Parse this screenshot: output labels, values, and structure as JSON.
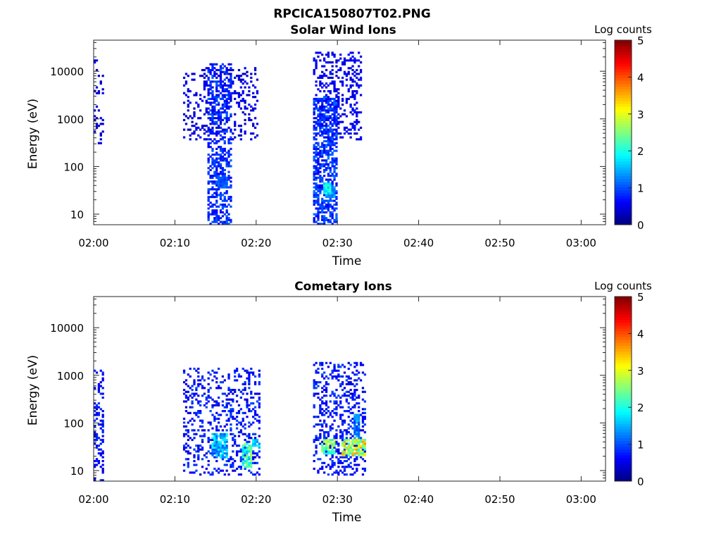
{
  "figure": {
    "title": "RPCICA150807T02.PNG"
  },
  "panels": [
    {
      "id": "sw",
      "title": "Solar Wind Ions",
      "xlabel": "Time",
      "ylabel": "Energy (eV)",
      "colorbar_title": "Log counts"
    },
    {
      "id": "cometary",
      "title": "Cometary Ions",
      "xlabel": "Time",
      "ylabel": "Energy (eV)",
      "colorbar_title": "Log counts"
    }
  ],
  "chart_data": [
    {
      "type": "heatmap",
      "title": "Solar Wind Ions",
      "xlabel": "Time",
      "ylabel": "Energy (eV)",
      "x_range_minutes_after_0200": [
        0,
        63
      ],
      "x_ticks": [
        "02:00",
        "02:10",
        "02:20",
        "02:30",
        "02:40",
        "02:50",
        "03:00"
      ],
      "y_scale": "log",
      "y_range_eV": [
        6,
        45000
      ],
      "y_ticks": [
        "10",
        "100",
        "1000",
        "10000"
      ],
      "colorbar": {
        "label": "Log counts",
        "range": [
          0,
          5
        ],
        "ticks": [
          "0",
          "1",
          "2",
          "3",
          "4",
          "5"
        ],
        "colormap": "jet"
      },
      "grid": false,
      "activity_regions": [
        {
          "t_start": 0.0,
          "t_end": 1.2,
          "e_min": 300,
          "e_max": 18000,
          "density": 0.22,
          "base_level": 0.3,
          "level_spread": 0.25
        },
        {
          "t_start": 10.8,
          "t_end": 20.2,
          "e_min": 350,
          "e_max": 12000,
          "density": 0.2,
          "base_level": 0.3,
          "level_spread": 0.35
        },
        {
          "t_start": 13.8,
          "t_end": 17.0,
          "e_min": 6,
          "e_max": 15000,
          "density": 0.48,
          "base_level": 0.5,
          "level_spread": 0.6
        },
        {
          "t_start": 26.8,
          "t_end": 33.0,
          "e_min": 350,
          "e_max": 25000,
          "density": 0.28,
          "base_level": 0.35,
          "level_spread": 0.4
        },
        {
          "t_start": 26.8,
          "t_end": 29.8,
          "e_min": 6,
          "e_max": 3000,
          "density": 0.6,
          "base_level": 0.5,
          "level_spread": 0.7
        }
      ],
      "hot_spots": [
        {
          "t": 28.6,
          "e": 35,
          "level": 2.2
        },
        {
          "t": 29.0,
          "e": 30,
          "level": 1.6
        },
        {
          "t": 15.8,
          "e": 45,
          "level": 1.2
        }
      ]
    },
    {
      "type": "heatmap",
      "title": "Cometary Ions",
      "xlabel": "Time",
      "ylabel": "Energy (eV)",
      "x_range_minutes_after_0200": [
        0,
        63
      ],
      "x_ticks": [
        "02:00",
        "02:10",
        "02:20",
        "02:30",
        "02:40",
        "02:50",
        "03:00"
      ],
      "y_scale": "log",
      "y_range_eV": [
        6,
        45000
      ],
      "y_ticks": [
        "10",
        "100",
        "1000",
        "10000"
      ],
      "colorbar": {
        "label": "Log counts",
        "range": [
          0,
          5
        ],
        "ticks": [
          "0",
          "1",
          "2",
          "3",
          "4",
          "5"
        ],
        "colormap": "jet"
      },
      "grid": false,
      "activity_regions": [
        {
          "t_start": 0.0,
          "t_end": 1.2,
          "e_min": 6,
          "e_max": 1300,
          "density": 0.28,
          "base_level": 0.4,
          "level_spread": 0.5
        },
        {
          "t_start": 10.8,
          "t_end": 20.3,
          "e_min": 8,
          "e_max": 1500,
          "density": 0.25,
          "base_level": 0.4,
          "level_spread": 0.6
        },
        {
          "t_start": 27.0,
          "t_end": 33.3,
          "e_min": 8,
          "e_max": 1900,
          "density": 0.3,
          "base_level": 0.4,
          "level_spread": 0.6
        }
      ],
      "bands": [
        {
          "t_start": 14.5,
          "t_end": 16.5,
          "e_min": 18,
          "e_max": 60,
          "level": 1.9
        },
        {
          "t_start": 18.2,
          "t_end": 19.5,
          "e_min": 12,
          "e_max": 40,
          "level": 2.6
        },
        {
          "t_start": 19.5,
          "t_end": 20.3,
          "e_min": 30,
          "e_max": 45,
          "level": 2.0
        },
        {
          "t_start": 27.8,
          "t_end": 29.6,
          "e_min": 22,
          "e_max": 45,
          "level": 3.0
        },
        {
          "t_start": 30.5,
          "t_end": 33.3,
          "e_min": 20,
          "e_max": 45,
          "level": 3.5
        },
        {
          "t_start": 31.8,
          "t_end": 32.7,
          "e_min": 40,
          "e_max": 160,
          "level": 1.6
        }
      ]
    }
  ]
}
